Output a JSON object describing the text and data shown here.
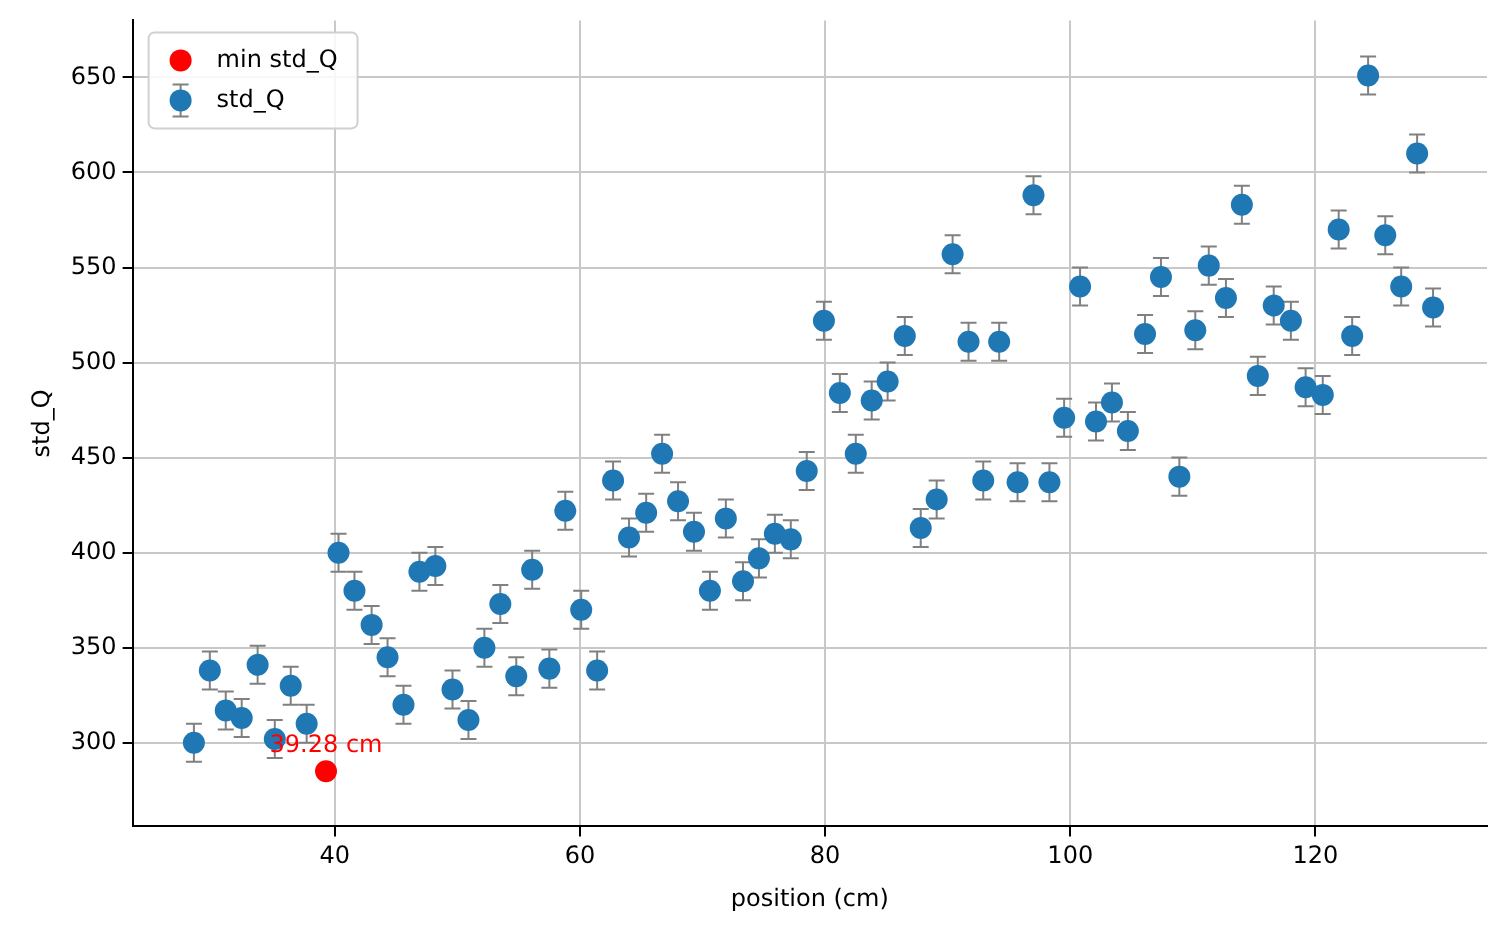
{
  "chart_data": {
    "type": "scatter",
    "xlabel": "position (cm)",
    "ylabel": "std_Q",
    "xlim": [
      23.5,
      134
    ],
    "ylim": [
      256,
      680
    ],
    "xticks": [
      40,
      60,
      80,
      100,
      120
    ],
    "yticks": [
      300,
      350,
      400,
      450,
      500,
      550,
      600,
      650
    ],
    "grid": true,
    "legend": "top left",
    "marker": "circle",
    "annotations": [
      {
        "text": "39.28 cm",
        "x": 39.28,
        "y": 285
      }
    ],
    "series": [
      {
        "name": "std_Q",
        "color": "#1f77b4",
        "x": [
          28.5,
          29.8,
          31.1,
          32.4,
          33.7,
          35.1,
          36.4,
          37.7,
          39.28,
          40.3,
          41.6,
          43.0,
          44.3,
          45.6,
          46.9,
          48.2,
          49.6,
          50.9,
          52.2,
          53.5,
          54.8,
          56.1,
          57.5,
          58.8,
          60.1,
          61.4,
          62.7,
          64.0,
          65.4,
          66.7,
          68.0,
          69.3,
          70.6,
          71.9,
          73.3,
          74.6,
          75.9,
          77.2,
          78.5,
          79.9,
          81.2,
          82.5,
          83.8,
          85.1,
          86.5,
          87.8,
          89.1,
          90.4,
          91.7,
          92.9,
          94.2,
          95.7,
          97.0,
          98.3,
          99.5,
          100.8,
          102.1,
          103.4,
          104.7,
          106.1,
          107.4,
          108.9,
          110.2,
          111.3,
          112.7,
          114.0,
          115.3,
          116.6,
          118.0,
          119.2,
          120.6,
          121.9,
          123.0,
          124.3,
          125.7,
          127.0,
          128.3,
          129.6
        ],
        "values": [
          300,
          338,
          317,
          313,
          341,
          302,
          330,
          310,
          null,
          400,
          380,
          362,
          345,
          320,
          390,
          393,
          328,
          312,
          350,
          373,
          335,
          391,
          339,
          422,
          370,
          338,
          438,
          408,
          421,
          452,
          427,
          411,
          380,
          418,
          385,
          397,
          410,
          407,
          443,
          522,
          484,
          452,
          480,
          490,
          514,
          413,
          428,
          557,
          511,
          438,
          511,
          437,
          588,
          437,
          471,
          540,
          469,
          479,
          464,
          515,
          545,
          440,
          517,
          551,
          534,
          583,
          493,
          530,
          522,
          487,
          483,
          570,
          514,
          651,
          567,
          540,
          610,
          529
        ],
        "errors": [
          10,
          10,
          10,
          10,
          10,
          10,
          10,
          10,
          null,
          10,
          10,
          10,
          10,
          10,
          10,
          10,
          10,
          10,
          10,
          10,
          10,
          10,
          10,
          10,
          10,
          10,
          10,
          10,
          10,
          10,
          10,
          10,
          10,
          10,
          10,
          10,
          10,
          10,
          10,
          10,
          10,
          10,
          10,
          10,
          10,
          10,
          10,
          10,
          10,
          10,
          10,
          10,
          10,
          10,
          10,
          10,
          10,
          10,
          10,
          10,
          10,
          10,
          10,
          10,
          10,
          10,
          10,
          10,
          10,
          10,
          10,
          10,
          10,
          10,
          10,
          10,
          10,
          10
        ]
      },
      {
        "name": "min std_Q",
        "color": "#ff0000",
        "x": [
          39.28
        ],
        "values": [
          285
        ]
      }
    ]
  }
}
